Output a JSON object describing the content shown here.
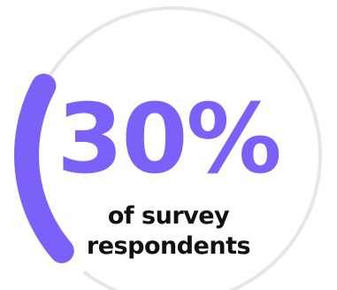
{
  "chart_data": {
    "type": "gauge",
    "value": 30,
    "max": 100,
    "display_value": "30%",
    "caption_lines": [
      "of survey",
      "respondents"
    ]
  },
  "colors": {
    "accent": "#7b61f7",
    "track": "#e6e6ea",
    "text": "#111111"
  }
}
